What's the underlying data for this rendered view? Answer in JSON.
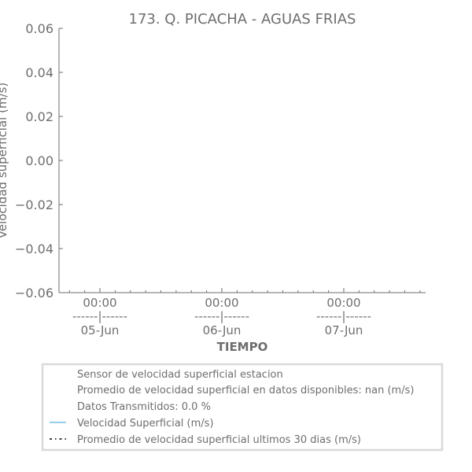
{
  "chart_data": {
    "type": "line",
    "title": "173. Q. PICACHA - AGUAS FRIAS",
    "xlabel": "TIEMPO",
    "ylabel": "Velocidad superficial (m/s)",
    "ylim": [
      -0.06,
      0.06
    ],
    "yticks": [
      "0.06",
      "0.04",
      "0.02",
      "0.00",
      "−0.02",
      "−0.04",
      "−0.06"
    ],
    "xticks": [
      {
        "time": "00:00",
        "sep": "------|------",
        "date": "05-Jun"
      },
      {
        "time": "00:00",
        "sep": "------|------",
        "date": "06-Jun"
      },
      {
        "time": "00:00",
        "sep": "------|------",
        "date": "07-Jun"
      }
    ],
    "grid": false,
    "legend_position": "below",
    "series": [
      {
        "name": "Velocidad Superficial (m/s)",
        "color": "#5dade2",
        "style": "solid",
        "x": [],
        "y": []
      },
      {
        "name": "Promedio de velocidad superficial ultimos 30 dias (m/s)",
        "color": "#000000",
        "style": "dashdot",
        "x": [],
        "y": []
      }
    ],
    "legend_entries": [
      {
        "text": "Sensor de velocidad superficial estacion",
        "marker": "none"
      },
      {
        "text": "Promedio de velocidad superficial en datos disponibles: nan (m/s)",
        "marker": "none"
      },
      {
        "text": "Datos Transmitidos: 0.0 %",
        "marker": "none"
      },
      {
        "text": "Velocidad Superficial (m/s)",
        "marker": "line-solid",
        "color": "#5dade2"
      },
      {
        "text": "Promedio de velocidad superficial ultimos 30 dias (m/s)",
        "marker": "line-dashdot",
        "color": "#000000"
      }
    ]
  }
}
